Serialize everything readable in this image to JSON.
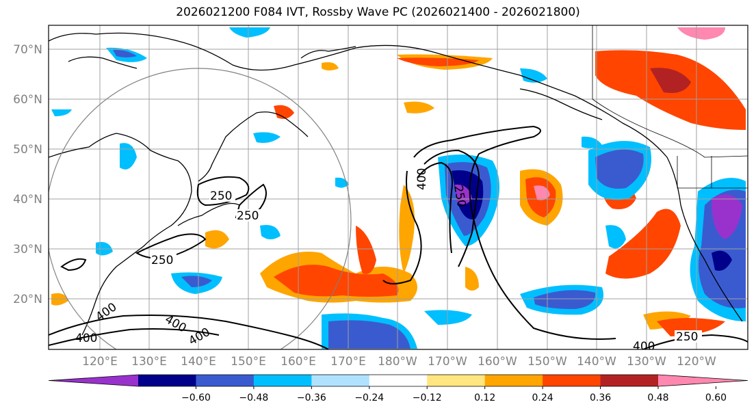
{
  "title": "2026021200 F084 IVT, Rossby Wave PC (2026021400 - 2026021800)",
  "axes": {
    "lat_labels": [
      "70°N",
      "60°N",
      "50°N",
      "40°N",
      "30°N",
      "20°N"
    ],
    "lon_labels": [
      "120°E",
      "130°E",
      "140°E",
      "150°E",
      "160°E",
      "170°E",
      "180°W",
      "170°W",
      "160°W",
      "150°W",
      "140°W",
      "130°W",
      "120°W"
    ]
  },
  "colorbar": {
    "colors": [
      "#9932cc",
      "#00008b",
      "#3a5bd0",
      "#00bfff",
      "#b0e2ff",
      "#ffffff",
      "#ffe680",
      "#ffa500",
      "#ff4500",
      "#b22222",
      "#ff88b0"
    ],
    "tick_labels": [
      "−0.60",
      "−0.48",
      "−0.36",
      "−0.24",
      "−0.12",
      "0.12",
      "0.24",
      "0.36",
      "0.48",
      "0.60"
    ]
  },
  "contour_labels": [
    "250",
    "250",
    "250",
    "400",
    "250",
    "400",
    "400",
    "400",
    "400",
    "250",
    "400"
  ],
  "colors": {
    "grid": "#a0a0a0",
    "coast": "#000000",
    "circle": "#808080"
  }
}
